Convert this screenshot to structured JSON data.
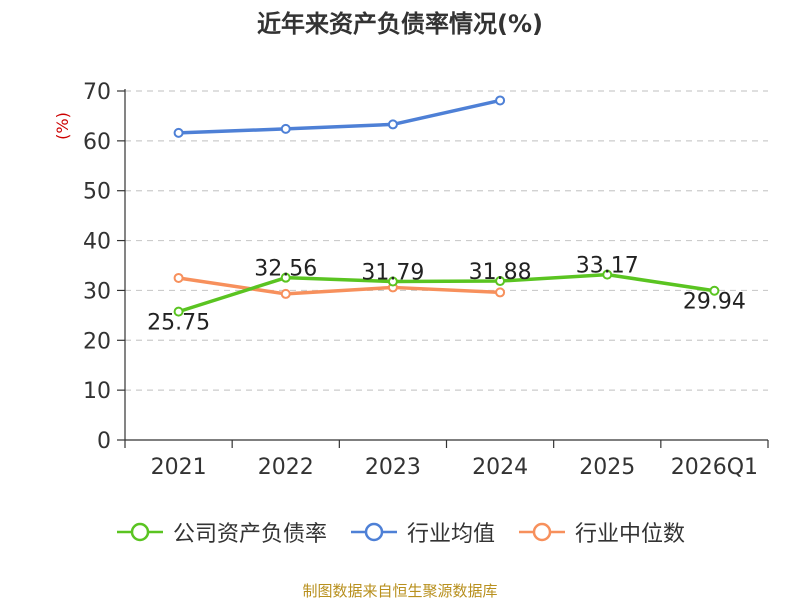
{
  "chart_data": {
    "type": "line",
    "title": "近年来资产负债率情况(%)",
    "ylabel": "(%)",
    "xlabel": "",
    "categories": [
      "2021",
      "2022",
      "2023",
      "2024",
      "2025",
      "2026Q1"
    ],
    "ylim": [
      0,
      70
    ],
    "yticks": [
      0,
      10,
      20,
      30,
      40,
      50,
      60,
      70
    ],
    "grid": true,
    "legend_position": "bottom",
    "series": [
      {
        "name": "公司资产负债率",
        "color": "#5ac421",
        "values": [
          25.75,
          32.56,
          31.79,
          31.88,
          33.17,
          29.94
        ],
        "labels": [
          "25.75",
          "32.56",
          "31.79",
          "31.88",
          "33.17",
          "29.94"
        ]
      },
      {
        "name": "行业均值",
        "color": "#4e80d6",
        "values": [
          61.6,
          62.4,
          63.3,
          68.1,
          null,
          null
        ]
      },
      {
        "name": "行业中位数",
        "color": "#f7905c",
        "values": [
          32.5,
          29.3,
          30.6,
          29.6,
          null,
          null
        ]
      }
    ]
  },
  "source": "制图数据来自恒生聚源数据库"
}
